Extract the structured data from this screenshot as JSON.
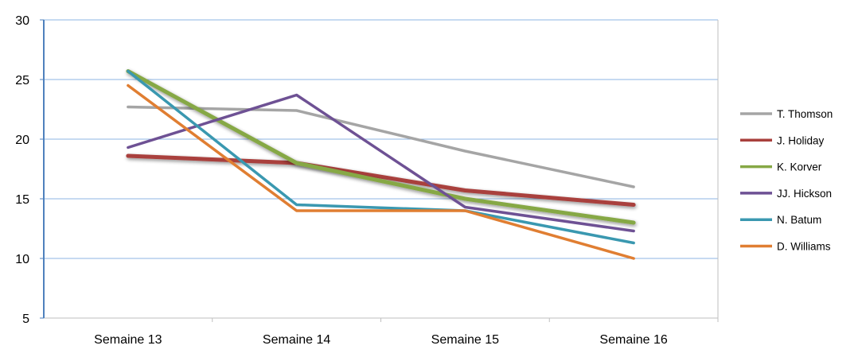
{
  "chart_data": {
    "type": "line",
    "categories": [
      "Semaine 13",
      "Semaine 14",
      "Semaine 15",
      "Semaine 16"
    ],
    "ylim": [
      5,
      30
    ],
    "yticks": [
      5,
      10,
      15,
      20,
      25,
      30
    ],
    "grid": true,
    "legend_position": "right",
    "series": [
      {
        "name": "T. Thomson",
        "color": "#a5a5a5",
        "values": [
          22.7,
          22.4,
          19.0,
          16.0
        ],
        "thick": false
      },
      {
        "name": "J. Holiday",
        "color": "#a9403d",
        "values": [
          18.6,
          18.0,
          15.7,
          14.5
        ],
        "thick": true
      },
      {
        "name": "K. Korver",
        "color": "#86a845",
        "values": [
          25.7,
          18.0,
          15.0,
          13.0
        ],
        "thick": true
      },
      {
        "name": "JJ. Hickson",
        "color": "#6e5194",
        "values": [
          19.3,
          23.7,
          14.3,
          12.3
        ],
        "thick": false
      },
      {
        "name": "N. Batum",
        "color": "#3a98b0",
        "values": [
          25.7,
          14.5,
          14.0,
          11.3
        ],
        "thick": false
      },
      {
        "name": "D. Williams",
        "color": "#e07e32",
        "values": [
          24.5,
          14.0,
          14.0,
          10.0
        ],
        "thick": false
      }
    ]
  }
}
